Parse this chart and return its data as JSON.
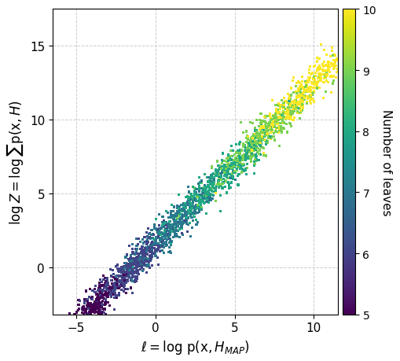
{
  "xlabel": "$\\ell = \\log\\, \\mathrm{p}(\\mathrm{x}, H_{MAP})$",
  "ylabel": "$\\log Z = \\log \\sum \\mathrm{p}(\\mathrm{x}, H)$",
  "colorbar_label": "Number of leaves",
  "xlim": [
    -6.5,
    11.5
  ],
  "ylim": [
    -3.2,
    17.5
  ],
  "xticks": [
    -5,
    0,
    5,
    10
  ],
  "yticks": [
    0,
    5,
    10,
    15
  ],
  "cmap": "viridis",
  "vmin": 5,
  "vmax": 10,
  "cticks": [
    5,
    6,
    7,
    8,
    9,
    10
  ],
  "num_leaves_min": 5,
  "num_leaves_max": 10,
  "marker_size": 5,
  "alpha": 1.0,
  "n_points": 2500,
  "seed": 42,
  "background_color": "#ffffff"
}
